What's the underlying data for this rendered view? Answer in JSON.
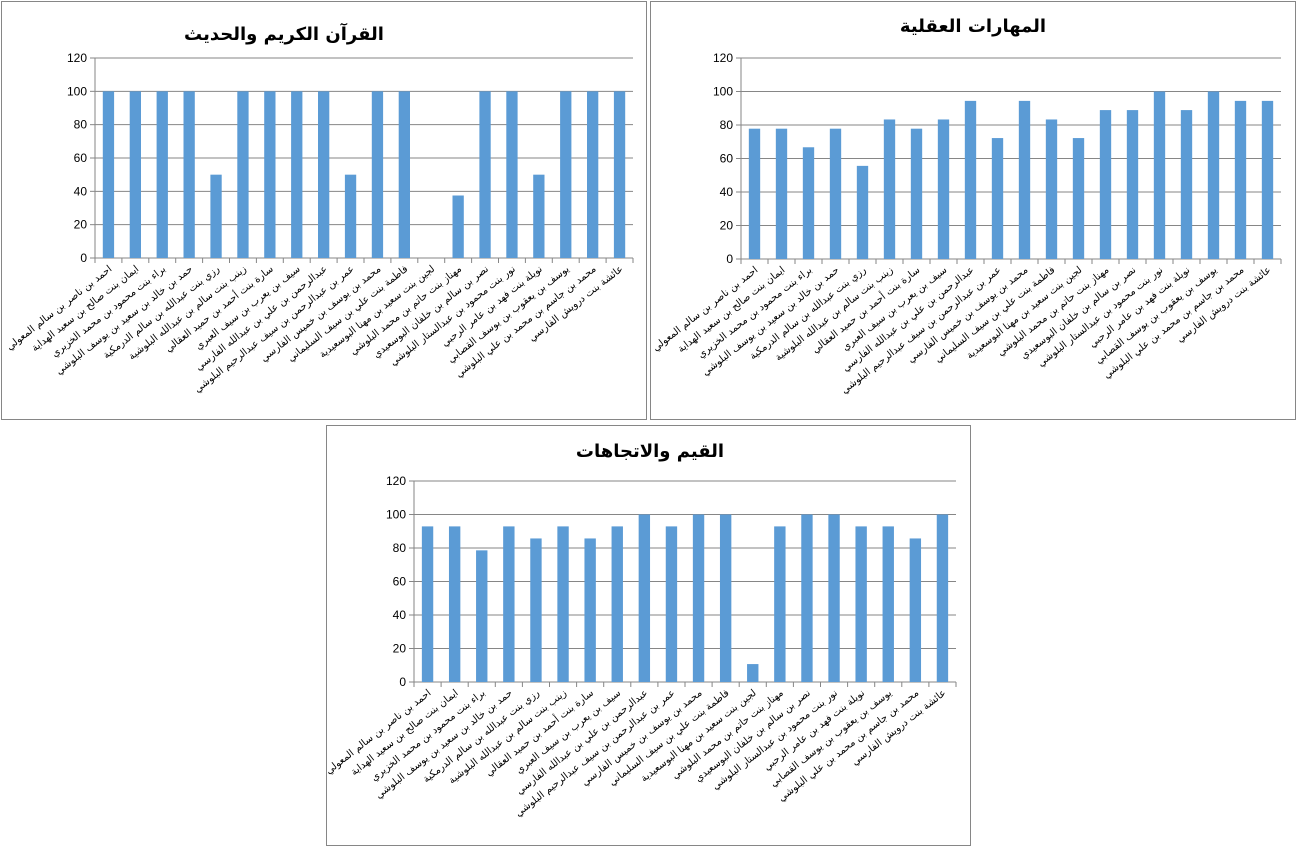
{
  "names": [
    "احمد بن ناصر بن سالم المعولي",
    "ايمان بنت صالح بن سعيد الهداية",
    "براء بنت محمود بن محمد الخزيري",
    "حمد بن خالد بن سعيد بن يوسف البلوشي",
    "رزي بنت عبدالله بن سالم الدرمكية",
    "زينب بنت سالم بن عبدالله البلوشية",
    "سارة بنت أحمد بن حميد العقالي",
    "سيف بن يعرب بن سيف العبري",
    "عبدالرحمن بن علي بن عبدالله الفارسي",
    "عمر بن عبدالرحمن بن سيف عبدالرحيم البلوشي",
    "محمد بن يوسف بن خميس الفارسي",
    "فاطمة بنت علي بن سيف السليماني",
    "لجين بنت سعيد بن مهنا البوسعيدية",
    "مهناز بنت حاتم بن محمد البلوشي",
    "نصر بن سالم بن خلفان البوسعيدي",
    "نور بنت محمود بن عبدالستار البلوشي",
    "نويلة بنت فهد بن عامر الرحبي",
    "يوسف بن يعقوب بن يوسف القصابي",
    "محمد بن جاسم بن محمد بن علي البلوشي",
    "عائشة بنت درويش الفارسي"
  ],
  "chart_data": [
    {
      "type": "bar",
      "title": "القرآن الكريم والحديث",
      "ylim": [
        0,
        120
      ],
      "yticks": [
        "0",
        "20",
        "40",
        "60",
        "80",
        "100",
        "120"
      ],
      "values": [
        100,
        100,
        100,
        100,
        50,
        100,
        100,
        100,
        100,
        50,
        100,
        100,
        0,
        37.5,
        100,
        100,
        50,
        100,
        100,
        100
      ],
      "grid": true,
      "legend": "none",
      "bar_color": "#5b9bd5"
    },
    {
      "type": "bar",
      "title": "المهارات العقلية",
      "ylim": [
        0,
        120
      ],
      "yticks": [
        "0",
        "20",
        "40",
        "60",
        "80",
        "100",
        "120"
      ],
      "values": [
        77.8,
        77.8,
        66.7,
        77.8,
        55.6,
        83.3,
        77.8,
        83.3,
        94.4,
        72.2,
        94.4,
        83.3,
        72.2,
        88.9,
        88.9,
        100,
        88.9,
        100,
        94.4,
        94.4
      ],
      "grid": true,
      "legend": "none",
      "bar_color": "#5b9bd5"
    },
    {
      "type": "bar",
      "title": "القيم والاتجاهات",
      "ylim": [
        0,
        120
      ],
      "yticks": [
        "0",
        "20",
        "40",
        "60",
        "80",
        "100",
        "120"
      ],
      "values": [
        92.9,
        92.9,
        78.6,
        92.9,
        85.7,
        92.9,
        85.7,
        92.9,
        100,
        92.9,
        100,
        100,
        10.7,
        92.9,
        100,
        100,
        92.9,
        92.9,
        85.7,
        100
      ],
      "grid": true,
      "legend": "none",
      "bar_color": "#5b9bd5"
    }
  ]
}
